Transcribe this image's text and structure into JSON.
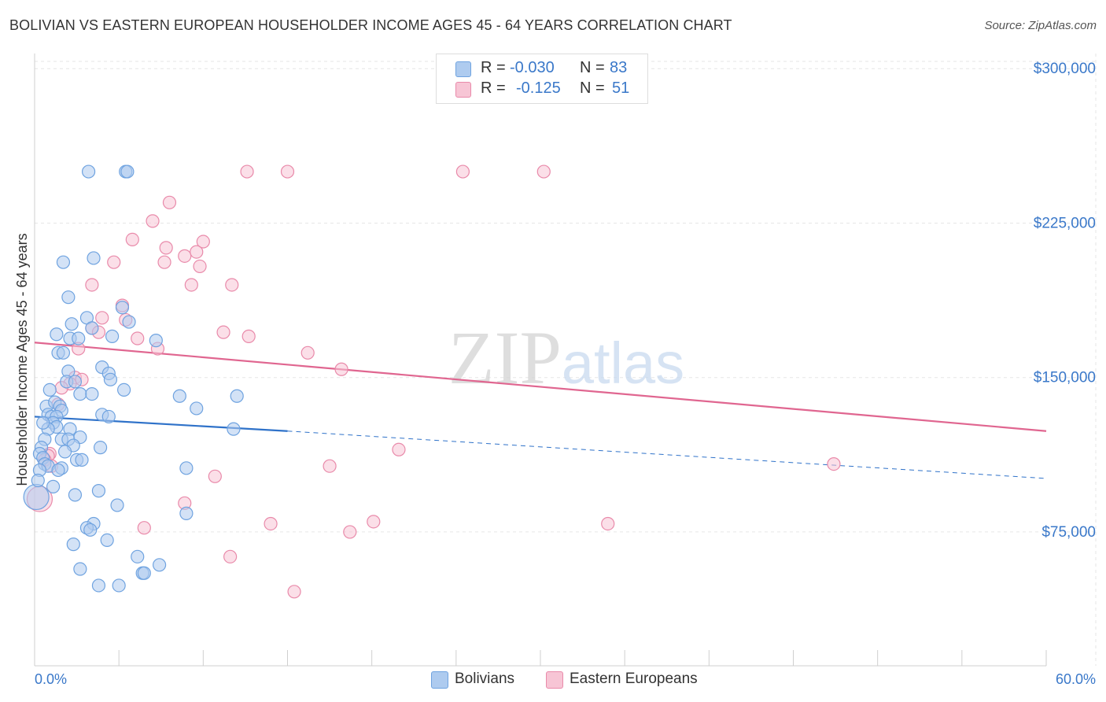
{
  "chart_data": {
    "type": "scatter",
    "title": "BOLIVIAN VS EASTERN EUROPEAN HOUSEHOLDER INCOME AGES 45 - 64 YEARS CORRELATION CHART",
    "source": "Source: ZipAtlas.com",
    "xlabel": "",
    "ylabel": "Householder Income Ages 45 - 64 years",
    "xlim": [
      0,
      60
    ],
    "ylim": [
      10000,
      315000
    ],
    "x_tick_labels": {
      "min": "0.0%",
      "max": "60.0%"
    },
    "y_ticks": [
      {
        "value": 75000,
        "label": "$75,000"
      },
      {
        "value": 150000,
        "label": "$150,000"
      },
      {
        "value": 225000,
        "label": "$225,000"
      },
      {
        "value": 300000,
        "label": "$300,000"
      }
    ],
    "grid": true,
    "watermark": "ZIPatlas",
    "legend": {
      "position": "top-center",
      "entries": [
        {
          "r_label": "R =",
          "r_value": "-0.030",
          "n_label": "N =",
          "n_value": "83"
        },
        {
          "r_label": "R =",
          "r_value": "-0.125",
          "n_label": "N =",
          "n_value": "51"
        }
      ]
    },
    "series": [
      {
        "name": "Bolivians",
        "color": "#6fa3e0",
        "fill": "#aecbef",
        "line_color": "#2f72c9",
        "trend": {
          "x0": 0,
          "y0": 131000,
          "x1": 15,
          "y1": 124000,
          "dashed_to_x": 60,
          "dashed_to_y": 101000
        },
        "points": [
          [
            3.2,
            250000
          ],
          [
            5.4,
            250000
          ],
          [
            5.5,
            250000
          ],
          [
            1.7,
            206000
          ],
          [
            3.5,
            208000
          ],
          [
            2.0,
            189000
          ],
          [
            3.1,
            179000
          ],
          [
            2.2,
            176000
          ],
          [
            3.4,
            174000
          ],
          [
            5.2,
            184000
          ],
          [
            5.6,
            177000
          ],
          [
            1.3,
            171000
          ],
          [
            2.1,
            169000
          ],
          [
            2.6,
            169000
          ],
          [
            4.6,
            170000
          ],
          [
            7.2,
            168000
          ],
          [
            1.4,
            162000
          ],
          [
            1.7,
            162000
          ],
          [
            4.0,
            155000
          ],
          [
            2.0,
            153000
          ],
          [
            4.4,
            152000
          ],
          [
            4.5,
            149000
          ],
          [
            1.9,
            148000
          ],
          [
            2.4,
            148000
          ],
          [
            0.9,
            144000
          ],
          [
            2.7,
            142000
          ],
          [
            3.4,
            142000
          ],
          [
            5.3,
            144000
          ],
          [
            8.6,
            141000
          ],
          [
            12.0,
            141000
          ],
          [
            0.7,
            136000
          ],
          [
            1.2,
            138000
          ],
          [
            1.5,
            136000
          ],
          [
            1.6,
            134000
          ],
          [
            9.6,
            135000
          ],
          [
            0.8,
            132000
          ],
          [
            1.0,
            131000
          ],
          [
            1.3,
            131000
          ],
          [
            4.0,
            132000
          ],
          [
            4.4,
            131000
          ],
          [
            1.1,
            128000
          ],
          [
            1.3,
            126000
          ],
          [
            0.8,
            125000
          ],
          [
            2.1,
            125000
          ],
          [
            11.8,
            125000
          ],
          [
            0.6,
            120000
          ],
          [
            1.6,
            120000
          ],
          [
            2.0,
            120000
          ],
          [
            2.7,
            121000
          ],
          [
            2.3,
            117000
          ],
          [
            3.9,
            116000
          ],
          [
            0.4,
            116000
          ],
          [
            0.3,
            113000
          ],
          [
            0.5,
            111000
          ],
          [
            2.5,
            110000
          ],
          [
            2.8,
            110000
          ],
          [
            0.6,
            108000
          ],
          [
            0.8,
            107000
          ],
          [
            1.6,
            106000
          ],
          [
            0.3,
            105000
          ],
          [
            1.4,
            105000
          ],
          [
            9.0,
            106000
          ],
          [
            3.8,
            95000
          ],
          [
            2.4,
            93000
          ],
          [
            0.1,
            92000
          ],
          [
            4.9,
            88000
          ],
          [
            9.0,
            84000
          ],
          [
            3.5,
            79000
          ],
          [
            3.1,
            77000
          ],
          [
            3.3,
            76000
          ],
          [
            4.3,
            71000
          ],
          [
            2.3,
            69000
          ],
          [
            6.1,
            63000
          ],
          [
            7.4,
            59000
          ],
          [
            2.7,
            57000
          ],
          [
            6.4,
            55000
          ],
          [
            6.5,
            55000
          ],
          [
            3.8,
            49000
          ],
          [
            5.0,
            49000
          ],
          [
            1.1,
            97000
          ],
          [
            0.2,
            100000
          ],
          [
            0.5,
            128000
          ],
          [
            1.8,
            114000
          ]
        ]
      },
      {
        "name": "Eastern Europeans",
        "color": "#e98aaa",
        "fill": "#f7c5d5",
        "line_color": "#e06690",
        "trend": {
          "x0": 0,
          "y0": 167000,
          "x1": 60,
          "y1": 124000
        },
        "points": [
          [
            12.6,
            250000
          ],
          [
            15.0,
            250000
          ],
          [
            25.4,
            250000
          ],
          [
            30.2,
            250000
          ],
          [
            8.0,
            235000
          ],
          [
            7.0,
            226000
          ],
          [
            5.8,
            217000
          ],
          [
            10.0,
            216000
          ],
          [
            7.8,
            213000
          ],
          [
            8.9,
            209000
          ],
          [
            9.6,
            211000
          ],
          [
            7.7,
            206000
          ],
          [
            4.7,
            206000
          ],
          [
            9.8,
            204000
          ],
          [
            3.4,
            195000
          ],
          [
            9.3,
            195000
          ],
          [
            11.7,
            195000
          ],
          [
            5.2,
            185000
          ],
          [
            5.4,
            178000
          ],
          [
            4.0,
            179000
          ],
          [
            3.4,
            174000
          ],
          [
            3.8,
            172000
          ],
          [
            11.2,
            172000
          ],
          [
            12.7,
            170000
          ],
          [
            6.1,
            169000
          ],
          [
            7.3,
            164000
          ],
          [
            2.6,
            164000
          ],
          [
            16.2,
            162000
          ],
          [
            18.2,
            154000
          ],
          [
            2.4,
            150000
          ],
          [
            2.1,
            147000
          ],
          [
            1.6,
            145000
          ],
          [
            1.4,
            137000
          ],
          [
            0.9,
            113000
          ],
          [
            21.6,
            115000
          ],
          [
            0.8,
            112000
          ],
          [
            17.5,
            107000
          ],
          [
            47.4,
            108000
          ],
          [
            10.7,
            102000
          ],
          [
            0.3,
            91000
          ],
          [
            8.9,
            89000
          ],
          [
            20.1,
            80000
          ],
          [
            14.0,
            79000
          ],
          [
            34.0,
            79000
          ],
          [
            6.5,
            77000
          ],
          [
            18.7,
            75000
          ],
          [
            11.6,
            63000
          ],
          [
            15.4,
            46000
          ],
          [
            0.6,
            110000
          ],
          [
            1.0,
            107000
          ],
          [
            2.8,
            149000
          ]
        ]
      }
    ]
  }
}
